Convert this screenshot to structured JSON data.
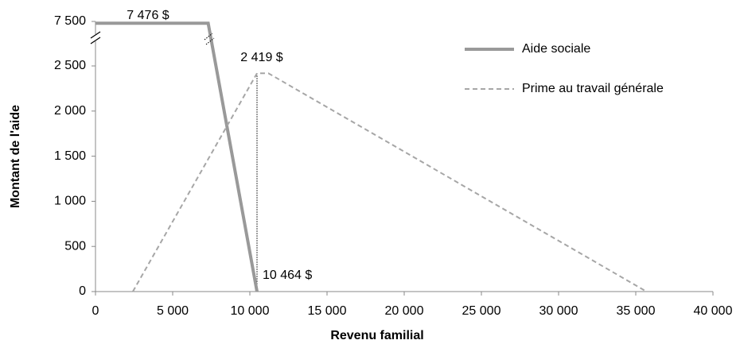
{
  "chart_data": {
    "type": "line",
    "x_label": "Revenu familial",
    "y_label": "Montant  de l'aide",
    "xlim": [
      0,
      40000
    ],
    "xticks": [
      0,
      {
        "value": 5000,
        "label": "5 000"
      },
      {
        "value": 10000,
        "label": "10 000"
      },
      {
        "value": 15000,
        "label": "15 000"
      },
      {
        "value": 20000,
        "label": "20 000"
      },
      {
        "value": 25000,
        "label": "25 000"
      },
      {
        "value": 30000,
        "label": "30 000"
      },
      {
        "value": 35000,
        "label": "35 000"
      },
      {
        "value": 40000,
        "label": "40 000"
      }
    ],
    "ylim": [
      0,
      7500
    ],
    "axis_break": [
      2700,
      7400
    ],
    "yticks": [
      0,
      500,
      {
        "value": 1000,
        "label": "1 000"
      },
      {
        "value": 1500,
        "label": "1 500"
      },
      {
        "value": 2000,
        "label": "2 000"
      },
      {
        "value": 2500,
        "label": "2 500"
      },
      {
        "value": 7500,
        "label": "7 500"
      }
    ],
    "legend_position": "upper right",
    "series": [
      {
        "name": "Aide sociale",
        "color": "#999999",
        "style": "solid",
        "x": [
          0,
          7300,
          10464
        ],
        "values": [
          7476,
          7476,
          0
        ]
      },
      {
        "name": "Prime au travail générale",
        "color": "#a6a6a6",
        "style": "dashed",
        "x": [
          2420,
          10464,
          11200,
          35700
        ],
        "values": [
          0,
          2419,
          2419,
          0
        ]
      }
    ],
    "annotations": [
      "7 476 $",
      "2 419 $",
      "10 464 $"
    ]
  }
}
